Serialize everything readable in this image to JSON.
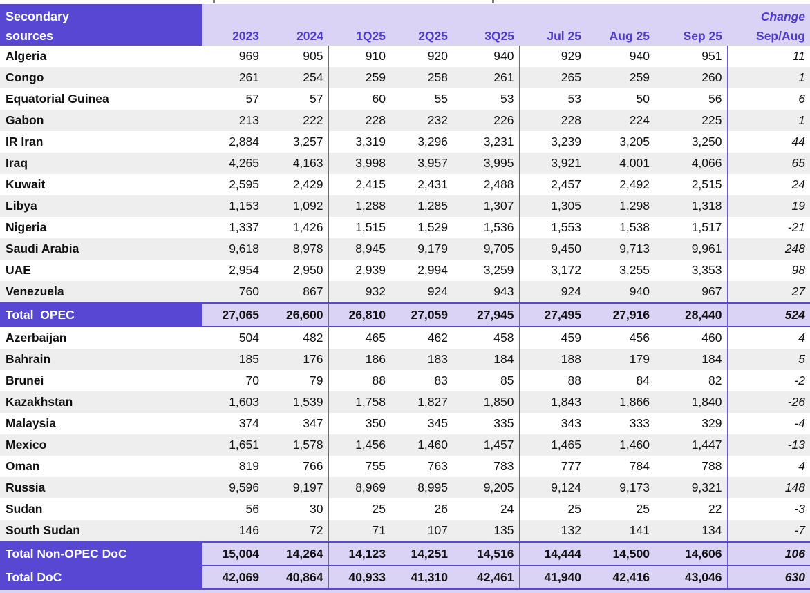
{
  "header": {
    "title_line1": "Secondary",
    "title_line2": "sources",
    "columns": [
      "2023",
      "2024",
      "1Q25",
      "2Q25",
      "3Q25",
      "Jul 25",
      "Aug 25",
      "Sep 25"
    ],
    "change_line1": "Change",
    "change_line2": "Sep/Aug"
  },
  "colors": {
    "accent_purple": "#5747D3",
    "lavender": "#DAD3F5",
    "header_text_purple": "#4C3CC6",
    "stripe_gray": "#EEEEEE",
    "grid_line_purple": "#6A5ACB"
  },
  "table": {
    "rows": [
      {
        "type": "data",
        "label": "Algeria",
        "values": [
          "969",
          "905",
          "910",
          "920",
          "940",
          "929",
          "940",
          "951"
        ],
        "change": "11"
      },
      {
        "type": "data",
        "label": "Congo",
        "values": [
          "261",
          "254",
          "259",
          "258",
          "261",
          "265",
          "259",
          "260"
        ],
        "change": "1"
      },
      {
        "type": "data",
        "label": "Equatorial Guinea",
        "values": [
          "57",
          "57",
          "60",
          "55",
          "53",
          "53",
          "50",
          "56"
        ],
        "change": "6"
      },
      {
        "type": "data",
        "label": "Gabon",
        "values": [
          "213",
          "222",
          "228",
          "232",
          "226",
          "228",
          "224",
          "225"
        ],
        "change": "1"
      },
      {
        "type": "data",
        "label": "IR Iran",
        "values": [
          "2,884",
          "3,257",
          "3,319",
          "3,296",
          "3,231",
          "3,239",
          "3,205",
          "3,250"
        ],
        "change": "44"
      },
      {
        "type": "data",
        "label": "Iraq",
        "values": [
          "4,265",
          "4,163",
          "3,998",
          "3,957",
          "3,995",
          "3,921",
          "4,001",
          "4,066"
        ],
        "change": "65"
      },
      {
        "type": "data",
        "label": "Kuwait",
        "values": [
          "2,595",
          "2,429",
          "2,415",
          "2,431",
          "2,488",
          "2,457",
          "2,492",
          "2,515"
        ],
        "change": "24"
      },
      {
        "type": "data",
        "label": "Libya",
        "values": [
          "1,153",
          "1,092",
          "1,288",
          "1,285",
          "1,307",
          "1,305",
          "1,298",
          "1,318"
        ],
        "change": "19"
      },
      {
        "type": "data",
        "label": "Nigeria",
        "values": [
          "1,337",
          "1,426",
          "1,515",
          "1,529",
          "1,536",
          "1,553",
          "1,538",
          "1,517"
        ],
        "change": "-21"
      },
      {
        "type": "data",
        "label": "Saudi Arabia",
        "values": [
          "9,618",
          "8,978",
          "8,945",
          "9,179",
          "9,705",
          "9,450",
          "9,713",
          "9,961"
        ],
        "change": "248"
      },
      {
        "type": "data",
        "label": "UAE",
        "values": [
          "2,954",
          "2,950",
          "2,939",
          "2,994",
          "3,259",
          "3,172",
          "3,255",
          "3,353"
        ],
        "change": "98"
      },
      {
        "type": "data",
        "label": "Venezuela",
        "values": [
          "760",
          "867",
          "932",
          "924",
          "943",
          "924",
          "940",
          "967"
        ],
        "change": "27"
      },
      {
        "type": "total",
        "label": "Total  OPEC",
        "values": [
          "27,065",
          "26,600",
          "26,810",
          "27,059",
          "27,945",
          "27,495",
          "27,916",
          "28,440"
        ],
        "change": "524"
      },
      {
        "type": "data",
        "label": "Azerbaijan",
        "values": [
          "504",
          "482",
          "465",
          "462",
          "458",
          "459",
          "456",
          "460"
        ],
        "change": "4"
      },
      {
        "type": "data",
        "label": "Bahrain",
        "values": [
          "185",
          "176",
          "186",
          "183",
          "184",
          "188",
          "179",
          "184"
        ],
        "change": "5"
      },
      {
        "type": "data",
        "label": "Brunei",
        "values": [
          "70",
          "79",
          "88",
          "83",
          "85",
          "88",
          "84",
          "82"
        ],
        "change": "-2"
      },
      {
        "type": "data",
        "label": "Kazakhstan",
        "values": [
          "1,603",
          "1,539",
          "1,758",
          "1,827",
          "1,850",
          "1,843",
          "1,866",
          "1,840"
        ],
        "change": "-26"
      },
      {
        "type": "data",
        "label": "Malaysia",
        "values": [
          "374",
          "347",
          "350",
          "345",
          "335",
          "343",
          "333",
          "329"
        ],
        "change": "-4"
      },
      {
        "type": "data",
        "label": "Mexico",
        "values": [
          "1,651",
          "1,578",
          "1,456",
          "1,460",
          "1,457",
          "1,465",
          "1,460",
          "1,447"
        ],
        "change": "-13"
      },
      {
        "type": "data",
        "label": "Oman",
        "values": [
          "819",
          "766",
          "755",
          "763",
          "783",
          "777",
          "784",
          "788"
        ],
        "change": "4"
      },
      {
        "type": "data",
        "label": "Russia",
        "values": [
          "9,596",
          "9,197",
          "8,969",
          "8,995",
          "9,205",
          "9,124",
          "9,173",
          "9,321"
        ],
        "change": "148"
      },
      {
        "type": "data",
        "label": "Sudan",
        "values": [
          "56",
          "30",
          "25",
          "26",
          "24",
          "25",
          "25",
          "22"
        ],
        "change": "-3"
      },
      {
        "type": "data",
        "label": "South Sudan",
        "values": [
          "146",
          "72",
          "71",
          "107",
          "135",
          "132",
          "141",
          "134"
        ],
        "change": "-7"
      },
      {
        "type": "total",
        "label": "Total Non-OPEC DoC",
        "values": [
          "15,004",
          "14,264",
          "14,123",
          "14,251",
          "14,516",
          "14,444",
          "14,500",
          "14,606"
        ],
        "change": "106"
      },
      {
        "type": "total",
        "label": "Total DoC",
        "values": [
          "42,069",
          "40,864",
          "40,933",
          "41,310",
          "42,461",
          "41,940",
          "42,416",
          "43,046"
        ],
        "change": "630"
      }
    ]
  }
}
